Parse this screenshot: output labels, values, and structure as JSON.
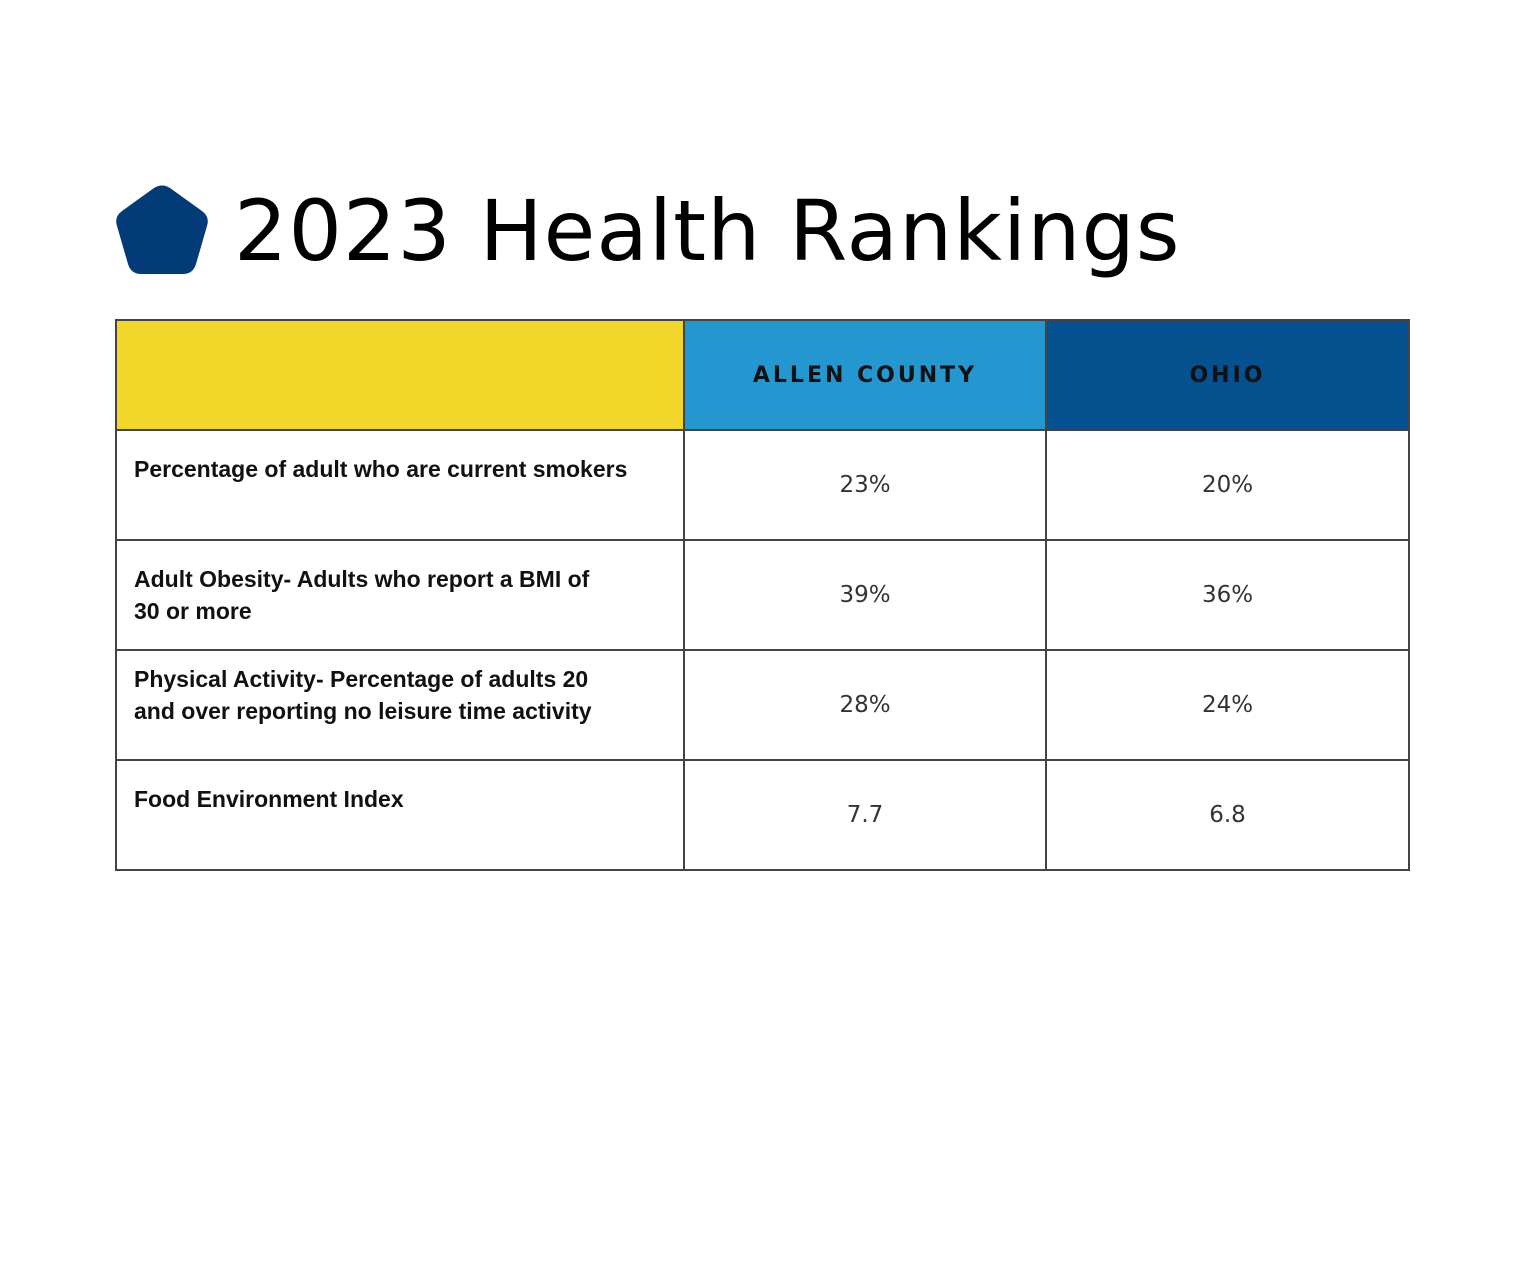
{
  "header": {
    "title": "2023 Health Rankings",
    "icon": "pentagon-icon",
    "icon_color": "#033a78"
  },
  "table": {
    "columns": {
      "label": "",
      "allen": "ALLEN COUNTY",
      "ohio": "OHIO"
    },
    "colors": {
      "label_header": "#f2d629",
      "allen_header": "#2497d1",
      "ohio_header": "#05518f"
    },
    "rows": [
      {
        "label": "Percentage of adult who are current smokers",
        "allen": "23%",
        "ohio": "20%"
      },
      {
        "label": "Adult Obesity- Adults who report a BMI of 30 or more",
        "allen": "39%",
        "ohio": "36%"
      },
      {
        "label": "Physical Activity- Percentage of adults 20 and over reporting no leisure time activity",
        "allen": "28%",
        "ohio": "24%"
      },
      {
        "label": "Food Environment Index",
        "allen": "7.7",
        "ohio": "6.8"
      }
    ]
  }
}
